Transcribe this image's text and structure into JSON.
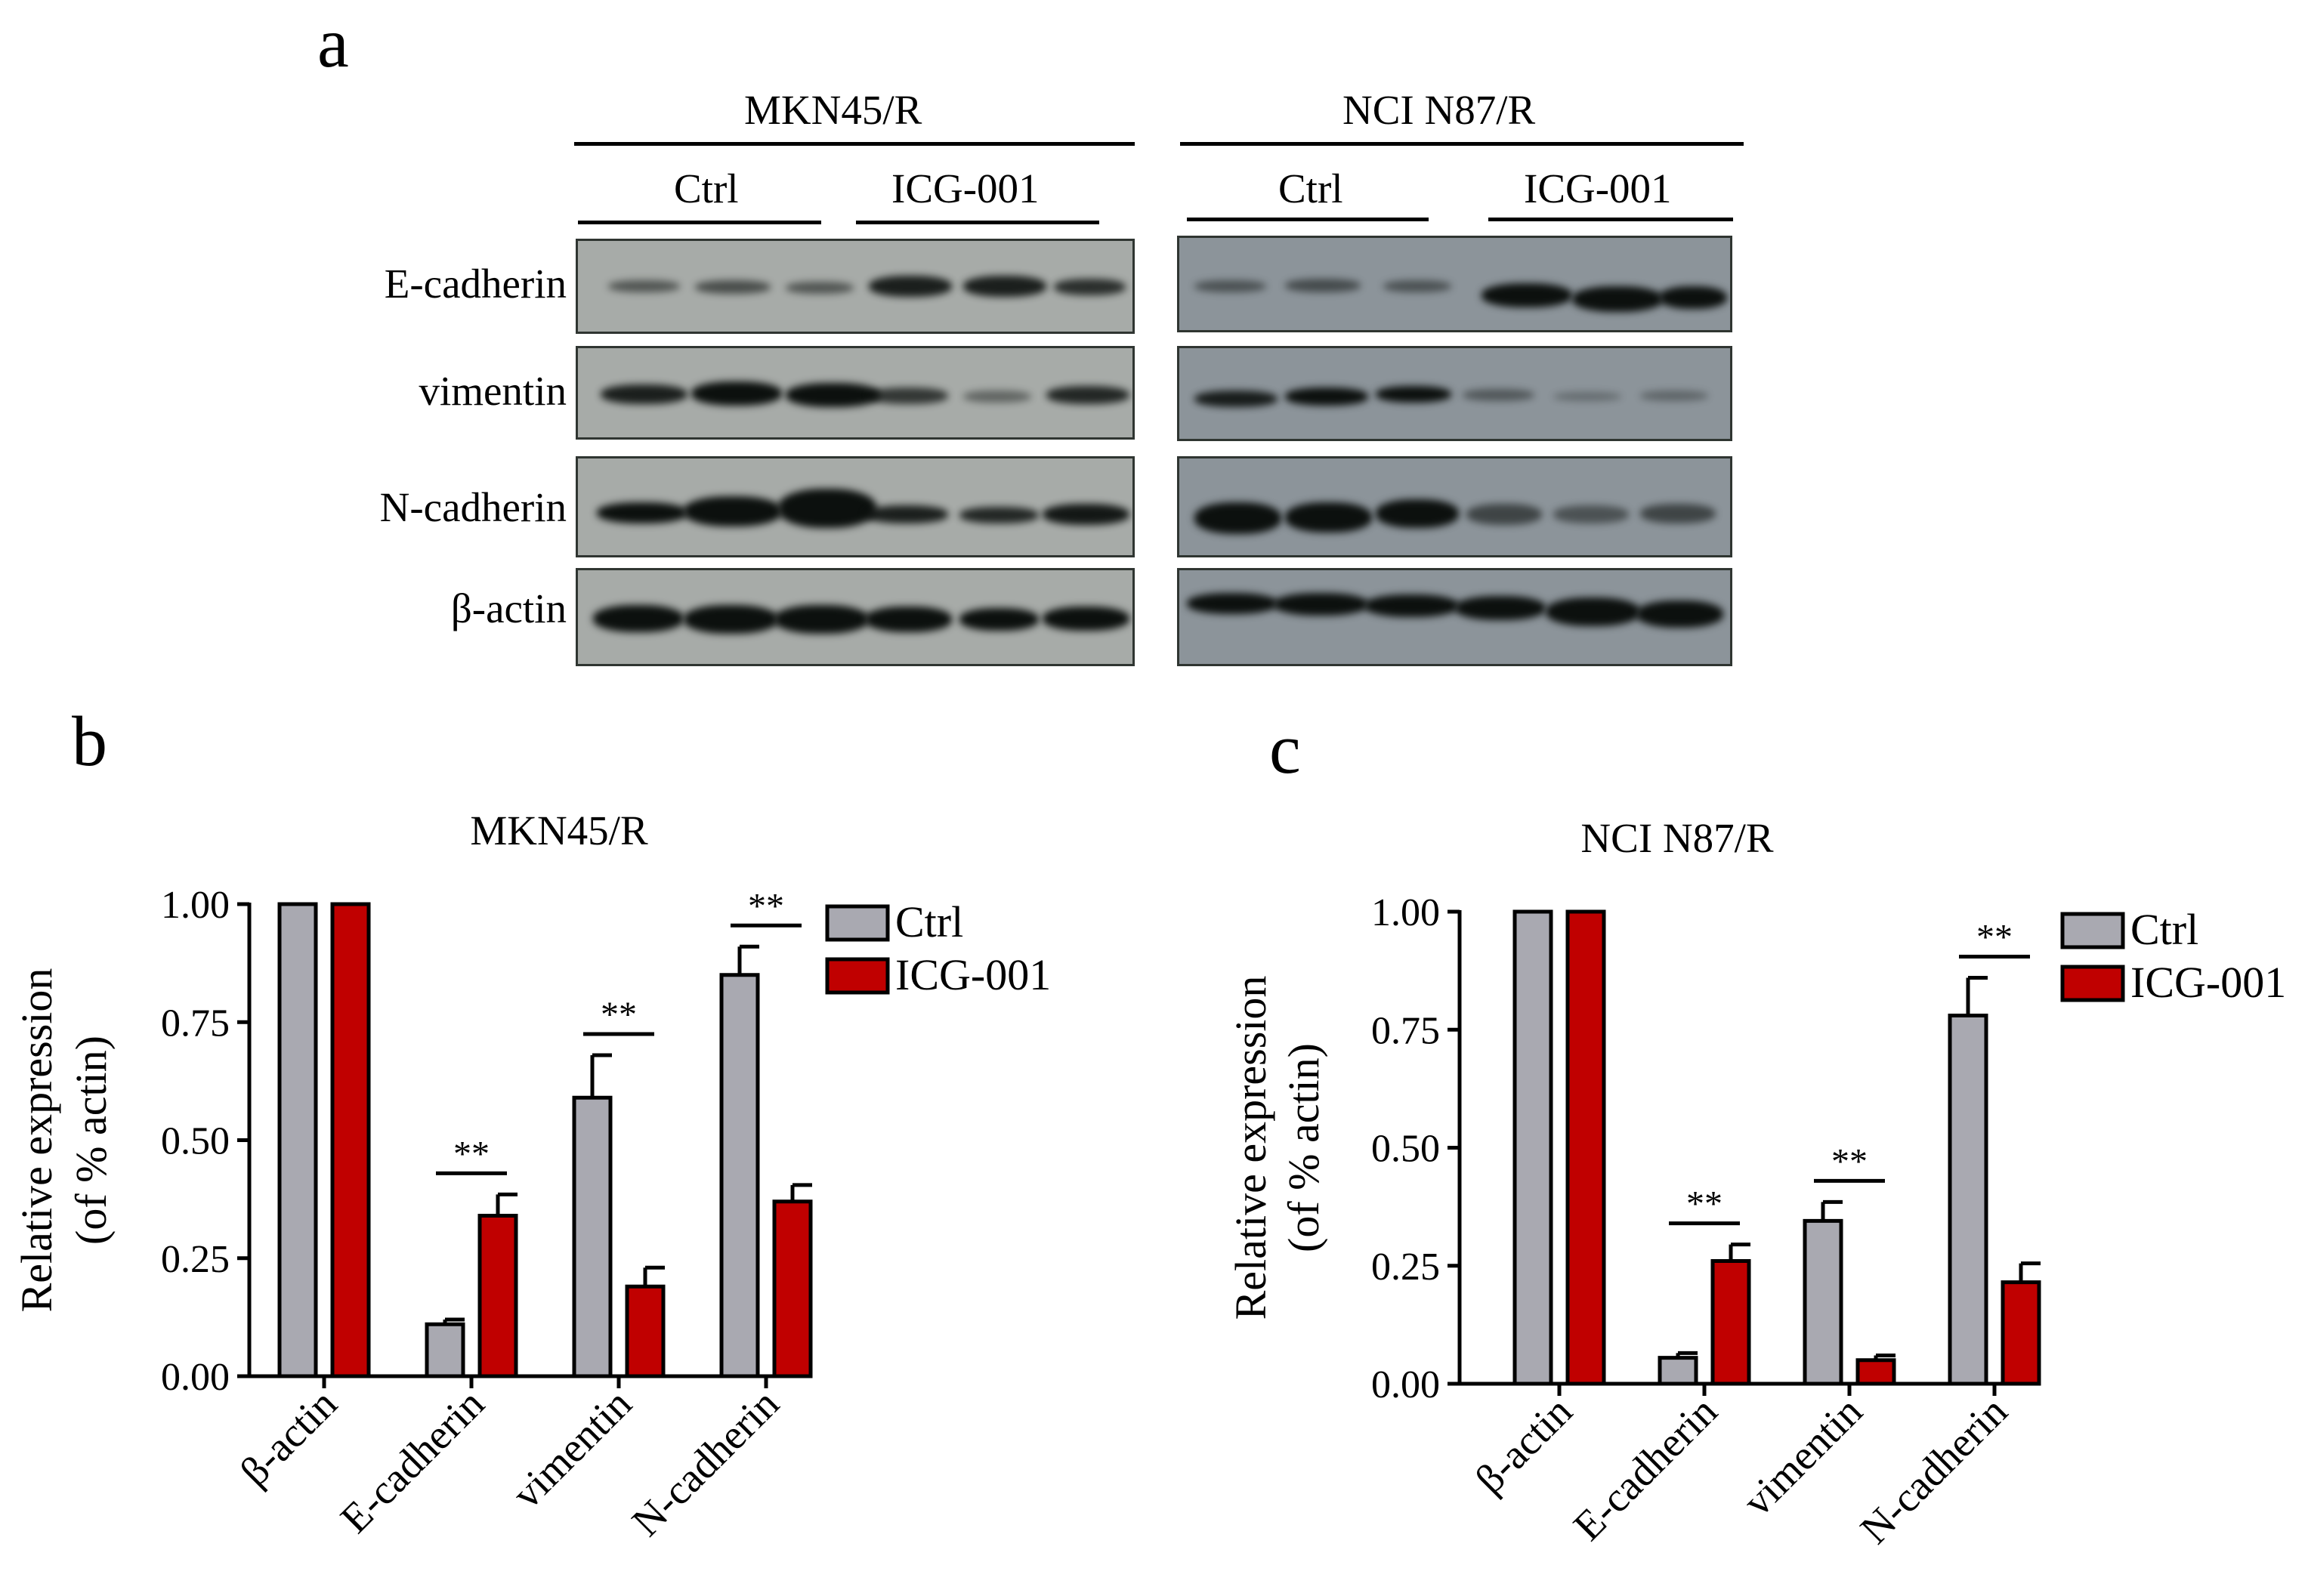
{
  "panel_a": {
    "letter": "a",
    "groups": [
      {
        "name": "MKN45/R",
        "conditions": [
          "Ctrl",
          "ICG-001"
        ]
      },
      {
        "name": "NCI N87/R",
        "conditions": [
          "Ctrl",
          "ICG-001"
        ]
      }
    ],
    "rows": [
      "E-cadherin",
      "vimentin",
      "N-cadherin",
      "β-actin"
    ]
  },
  "chart_data": [
    {
      "panel": "b",
      "type": "bar",
      "title": "MKN45/R",
      "ylabel_line1": "Relative expression",
      "ylabel_line2": "(of % actin)",
      "categories": [
        "β-actin",
        "E-cadherin",
        "vimentin",
        "N-cadherin"
      ],
      "ylim": [
        0,
        1.0
      ],
      "yticks": [
        "0.00",
        "0.25",
        "0.50",
        "0.75",
        "1.00"
      ],
      "series": [
        {
          "name": "Ctrl",
          "color": "#a9a9b1",
          "values": [
            1.0,
            0.11,
            0.59,
            0.85
          ],
          "errors": [
            0,
            0.01,
            0.09,
            0.06
          ]
        },
        {
          "name": "ICG-001",
          "color": "#c00000",
          "values": [
            1.0,
            0.34,
            0.19,
            0.37
          ],
          "errors": [
            0,
            0.045,
            0.04,
            0.035
          ]
        }
      ],
      "significance": [
        {
          "category": "E-cadherin",
          "label": "**"
        },
        {
          "category": "vimentin",
          "label": "**"
        },
        {
          "category": "N-cadherin",
          "label": "**"
        }
      ],
      "legend": "top-right"
    },
    {
      "panel": "c",
      "type": "bar",
      "title": "NCI N87/R",
      "ylabel_line1": "Relative expression",
      "ylabel_line2": "(of % actin)",
      "categories": [
        "β-actin",
        "E-cadherin",
        "vimentin",
        "N-cadherin"
      ],
      "ylim": [
        0,
        1.0
      ],
      "yticks": [
        "0.00",
        "0.25",
        "0.50",
        "0.75",
        "1.00"
      ],
      "series": [
        {
          "name": "Ctrl",
          "color": "#a9a9b1",
          "values": [
            1.0,
            0.055,
            0.345,
            0.78
          ],
          "errors": [
            0,
            0.01,
            0.04,
            0.08
          ]
        },
        {
          "name": "ICG-001",
          "color": "#c00000",
          "values": [
            1.0,
            0.26,
            0.05,
            0.215
          ],
          "errors": [
            0,
            0.035,
            0.01,
            0.04
          ]
        }
      ],
      "significance": [
        {
          "category": "E-cadherin",
          "label": "**"
        },
        {
          "category": "vimentin",
          "label": "**"
        },
        {
          "category": "N-cadherin",
          "label": "**"
        }
      ],
      "legend": "top-right"
    }
  ]
}
